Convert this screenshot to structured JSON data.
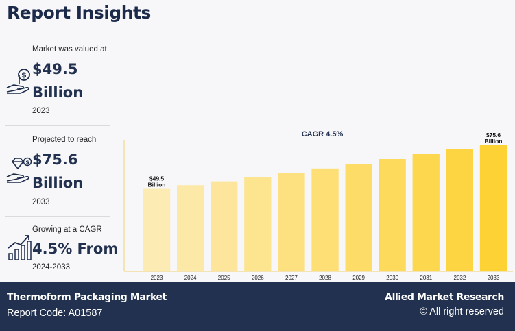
{
  "page": {
    "title": "Report Insights"
  },
  "stats": [
    {
      "caption": "Market was valued at",
      "value_line1": "$49.5",
      "value_line2": "Billion",
      "year": "2023",
      "icon": "money-hand-icon"
    },
    {
      "caption": "Projected to reach",
      "value_line1": "$75.6",
      "value_line2": "Billion",
      "year": "2033",
      "icon": "diamond-hand-icon"
    },
    {
      "caption": "Growing at a CAGR",
      "value_line1": "4.5% From",
      "year": "2024-2033",
      "icon": "growth-chart-icon"
    }
  ],
  "chart_data": {
    "type": "bar",
    "annotation": "CAGR 4.5%",
    "categories": [
      "2023",
      "2024",
      "2025",
      "2026",
      "2027",
      "2028",
      "2029",
      "2030",
      "2031",
      "2032",
      "2033"
    ],
    "values": [
      49.5,
      51.7,
      54.0,
      56.5,
      59.0,
      61.7,
      64.5,
      67.4,
      70.4,
      73.5,
      75.6
    ],
    "data_labels": [
      {
        "index": 0,
        "line1": "$49.5",
        "line2": "Billion"
      },
      {
        "index": 10,
        "line1": "$75.6",
        "line2": "Billion"
      }
    ],
    "ylim": [
      0,
      80
    ],
    "colors": {
      "start": "#fdebb4",
      "end": "#fdd235",
      "axis": "#f3d98a"
    }
  },
  "footer": {
    "title": "Thermoform Packaging Market",
    "report_code": "Report Code: A01587",
    "brand": "Allied Market Research",
    "rights": "© All right reserved"
  }
}
